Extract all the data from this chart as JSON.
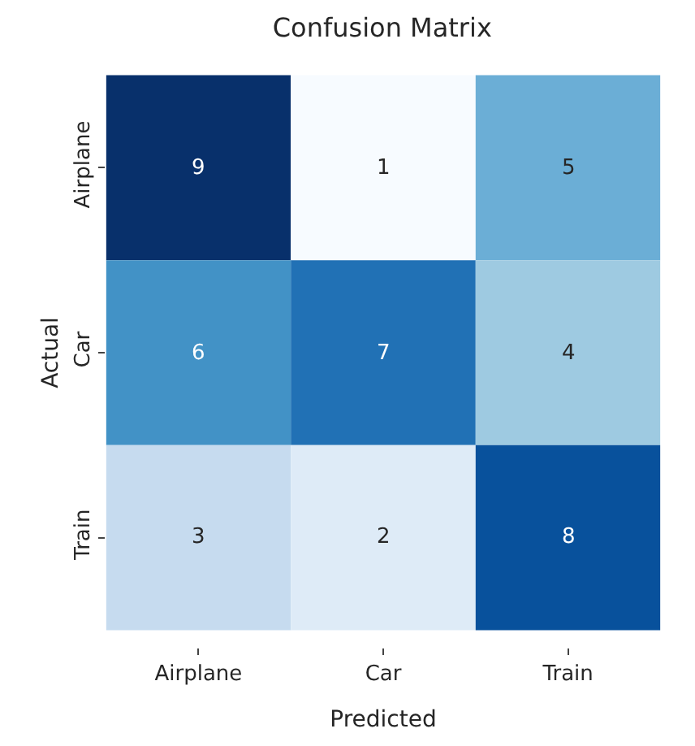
{
  "chart_data": {
    "type": "heatmap",
    "title": "Confusion Matrix",
    "xlabel": "Predicted",
    "ylabel": "Actual",
    "categories": [
      "Airplane",
      "Car",
      "Train"
    ],
    "y_categories": [
      "Airplane",
      "Car",
      "Train"
    ],
    "cells": [
      [
        9,
        1,
        5
      ],
      [
        6,
        7,
        4
      ],
      [
        3,
        2,
        8
      ]
    ],
    "data_labels": true
  }
}
